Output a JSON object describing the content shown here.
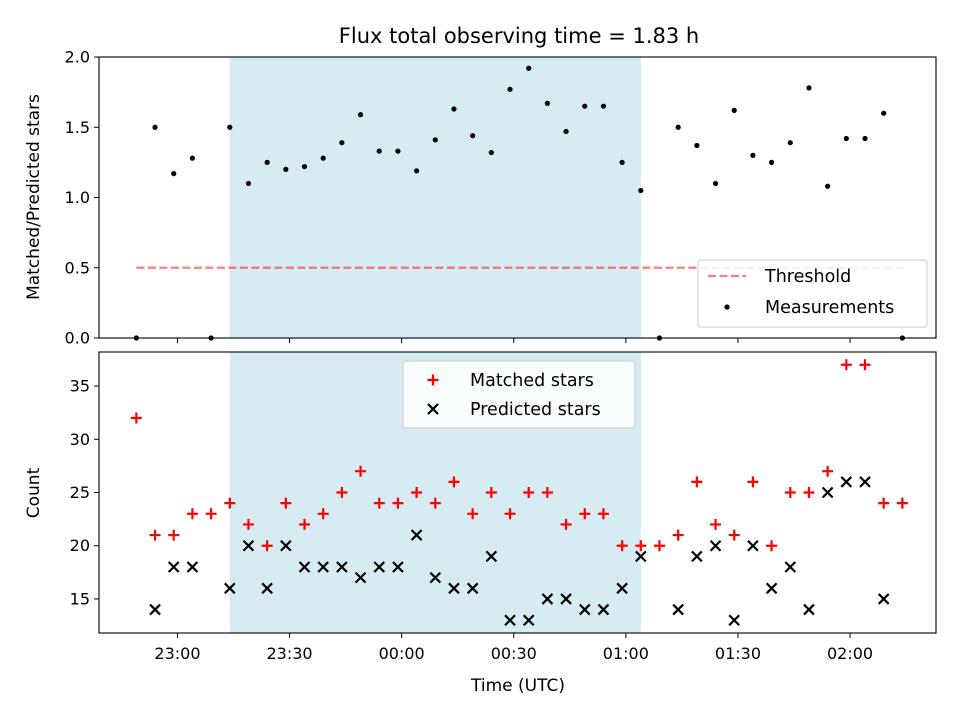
{
  "chart_data": [
    {
      "type": "scatter",
      "title": "Flux total observing time = 1.83 h",
      "xlabel": "",
      "ylabel": "Matched/Predicted stars",
      "ylim": [
        0,
        2.0
      ],
      "yticks": [
        0.0,
        0.5,
        1.0,
        1.5,
        2.0
      ],
      "ytick_labels": [
        "0.0",
        "0.5",
        "1.0",
        "1.5",
        "2.0"
      ],
      "xlim": [
        "22:39",
        "02:23"
      ],
      "xticks": [
        "23:00",
        "23:30",
        "00:00",
        "00:30",
        "01:00",
        "01:30",
        "02:00"
      ],
      "shaded_span": {
        "start": "23:14",
        "end": "01:04",
        "color": "#add8e6"
      },
      "legend_position": "lower-right",
      "series": [
        {
          "name": "Threshold",
          "kind": "line",
          "style": "dashed",
          "color": "#ff0000",
          "x": [
            "22:49",
            "02:14"
          ],
          "y": [
            0.5,
            0.5
          ]
        },
        {
          "name": "Measurements",
          "kind": "points",
          "color": "#000000",
          "x": [
            "22:49",
            "22:54",
            "22:59",
            "23:04",
            "23:09",
            "23:14",
            "23:19",
            "23:24",
            "23:29",
            "23:34",
            "23:39",
            "23:44",
            "23:49",
            "23:54",
            "23:59",
            "00:04",
            "00:09",
            "00:14",
            "00:19",
            "00:24",
            "00:29",
            "00:34",
            "00:39",
            "00:44",
            "00:49",
            "00:54",
            "00:59",
            "01:04",
            "01:09",
            "01:14",
            "01:19",
            "01:24",
            "01:29",
            "01:34",
            "01:39",
            "01:44",
            "01:49",
            "01:54",
            "01:59",
            "02:04",
            "02:09",
            "02:14"
          ],
          "y": [
            0.0,
            1.5,
            1.17,
            1.28,
            0.0,
            1.5,
            1.1,
            1.25,
            1.2,
            1.22,
            1.28,
            1.39,
            1.59,
            1.33,
            1.33,
            1.19,
            1.41,
            1.63,
            1.44,
            1.32,
            1.77,
            1.92,
            1.67,
            1.47,
            1.65,
            1.65,
            1.25,
            1.05,
            0.0,
            1.5,
            1.37,
            1.1,
            1.62,
            1.3,
            1.25,
            1.39,
            1.78,
            1.08,
            1.42,
            1.42,
            1.6,
            0.0
          ]
        }
      ]
    },
    {
      "type": "scatter",
      "title": "",
      "xlabel": "Time (UTC)",
      "ylabel": "Count",
      "ylim": [
        11.8,
        38.2
      ],
      "yticks": [
        15,
        20,
        25,
        30,
        35
      ],
      "ytick_labels": [
        "15",
        "20",
        "25",
        "30",
        "35"
      ],
      "xlim": [
        "22:39",
        "02:23"
      ],
      "xticks": [
        "23:00",
        "23:30",
        "00:00",
        "00:30",
        "01:00",
        "01:30",
        "02:00"
      ],
      "xtick_labels": [
        "23:00",
        "23:30",
        "00:00",
        "00:30",
        "01:00",
        "01:30",
        "02:00"
      ],
      "shaded_span": {
        "start": "23:14",
        "end": "01:04",
        "color": "#add8e6"
      },
      "legend_position": "upper-center",
      "series": [
        {
          "name": "Matched stars",
          "marker": "plus",
          "color": "#ff0000",
          "x": [
            "22:49",
            "22:54",
            "22:59",
            "23:04",
            "23:09",
            "23:14",
            "23:19",
            "23:24",
            "23:29",
            "23:34",
            "23:39",
            "23:44",
            "23:49",
            "23:54",
            "23:59",
            "00:04",
            "00:09",
            "00:14",
            "00:19",
            "00:24",
            "00:29",
            "00:34",
            "00:39",
            "00:44",
            "00:49",
            "00:54",
            "00:59",
            "01:04",
            "01:09",
            "01:14",
            "01:19",
            "01:24",
            "01:29",
            "01:34",
            "01:39",
            "01:44",
            "01:49",
            "01:54",
            "01:59",
            "02:04",
            "02:09",
            "02:14"
          ],
          "y": [
            32,
            21,
            21,
            23,
            23,
            24,
            22,
            20,
            24,
            22,
            23,
            25,
            27,
            24,
            24,
            25,
            24,
            26,
            23,
            25,
            23,
            25,
            25,
            22,
            23,
            23,
            20,
            20,
            20,
            21,
            26,
            22,
            21,
            26,
            20,
            25,
            25,
            27,
            37,
            37,
            24,
            24
          ]
        },
        {
          "name": "Predicted stars",
          "marker": "x",
          "color": "#000000",
          "x": [
            "22:54",
            "22:59",
            "23:04",
            "23:14",
            "23:19",
            "23:24",
            "23:29",
            "23:34",
            "23:39",
            "23:44",
            "23:49",
            "23:54",
            "23:59",
            "00:04",
            "00:09",
            "00:14",
            "00:19",
            "00:24",
            "00:29",
            "00:34",
            "00:39",
            "00:44",
            "00:49",
            "00:54",
            "00:59",
            "01:04",
            "01:14",
            "01:19",
            "01:24",
            "01:29",
            "01:34",
            "01:39",
            "01:44",
            "01:49",
            "01:54",
            "01:59",
            "02:04",
            "02:09"
          ],
          "y": [
            14,
            18,
            18,
            16,
            20,
            16,
            20,
            18,
            18,
            18,
            17,
            18,
            18,
            21,
            17,
            16,
            16,
            19,
            13,
            13,
            15,
            15,
            14,
            14,
            16,
            19,
            14,
            19,
            20,
            13,
            20,
            16,
            18,
            14,
            25,
            26,
            26,
            15
          ]
        }
      ]
    }
  ]
}
